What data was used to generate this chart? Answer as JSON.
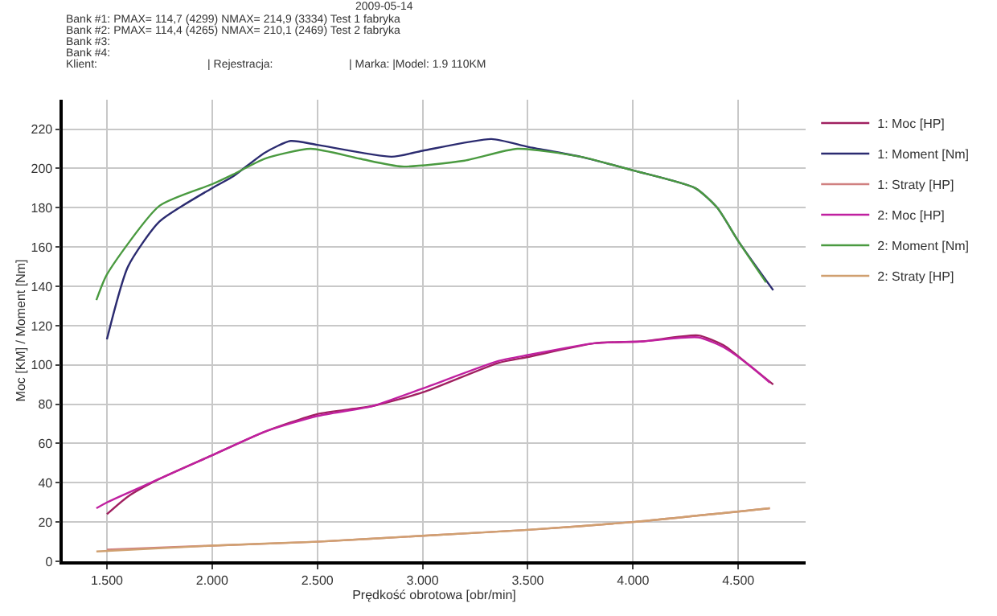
{
  "chart_data": {
    "type": "line",
    "xlabel": "Prędkość obrotowa [obr/min]",
    "ylabel": "Moc [KM] / Moment [Nm]",
    "xlim": [
      1290,
      4820
    ],
    "ylim": [
      0,
      235
    ],
    "xticks": [
      {
        "value": 1500,
        "label": "1.500"
      },
      {
        "value": 2000,
        "label": "2.000"
      },
      {
        "value": 2500,
        "label": "2.500"
      },
      {
        "value": 3000,
        "label": "3.000"
      },
      {
        "value": 3500,
        "label": "3.500"
      },
      {
        "value": 4000,
        "label": "4.000"
      },
      {
        "value": 4500,
        "label": "4.500"
      }
    ],
    "yticks": [
      0,
      20,
      40,
      60,
      80,
      100,
      120,
      140,
      160,
      180,
      200,
      220
    ],
    "grid": true,
    "legend": "right",
    "annotations": [
      "2009-05-14",
      "Bank #1: PMAX= 114,7 (4299) NMAX= 214,9 (3334) Test 1 fabryka",
      "Bank #2: PMAX= 114,4 (4265) NMAX= 210,1 (2469) Test 2 fabryka",
      "Bank #3:",
      "Bank #4:",
      "Klient:",
      "| Rejestracja:",
      "| Marka: |Model: 1.9 110KM"
    ],
    "series": [
      {
        "name": "1: Moc [HP]",
        "color": "#a02060",
        "x": [
          1500,
          1600,
          1750,
          2000,
          2250,
          2500,
          2760,
          3000,
          3360,
          3500,
          3815,
          4046,
          4310,
          4430,
          4550,
          4666
        ],
        "values": [
          24,
          33,
          42,
          54,
          66,
          75,
          79,
          86,
          101,
          104,
          111,
          112,
          115,
          110,
          100,
          90
        ]
      },
      {
        "name": "1: Moment [Nm]",
        "color": "#2b2b70",
        "x": [
          1500,
          1600,
          1750,
          2000,
          2100,
          2250,
          2372,
          2500,
          2853,
          3000,
          3327,
          3500,
          3750,
          4000,
          4295,
          4400,
          4500,
          4666
        ],
        "values": [
          113,
          150,
          173,
          190,
          196,
          208,
          214,
          212,
          206,
          209,
          215,
          211,
          206,
          199,
          190,
          180,
          163,
          138
        ]
      },
      {
        "name": "1: Straty [HP]",
        "color": "#d08080",
        "x": [
          1500,
          2000,
          2500,
          3000,
          3500,
          4000,
          4650
        ],
        "values": [
          6,
          8,
          10,
          13,
          16,
          20,
          27
        ]
      },
      {
        "name": "2: Moc [HP]",
        "color": "#c020a0",
        "x": [
          1450,
          1500,
          1750,
          2000,
          2250,
          2500,
          2760,
          3000,
          3360,
          3500,
          3815,
          4046,
          4310,
          4430,
          4550,
          4650
        ],
        "values": [
          27,
          30,
          42,
          54,
          66,
          74,
          79,
          88,
          102,
          105,
          111,
          112,
          114,
          109,
          100,
          91
        ]
      },
      {
        "name": "2: Moment [Nm]",
        "color": "#4a9a40",
        "x": [
          1450,
          1500,
          1750,
          2000,
          2100,
          2250,
          2468,
          2700,
          2901,
          3200,
          3450,
          3750,
          4000,
          4295,
          4400,
          4500,
          4632
        ],
        "values": [
          133,
          146,
          181,
          192,
          197,
          205,
          210,
          205,
          201,
          204,
          210,
          206,
          199,
          190,
          180,
          163,
          142
        ]
      },
      {
        "name": "2: Straty [HP]",
        "color": "#d0a070",
        "x": [
          1450,
          2000,
          2500,
          3000,
          3500,
          4000,
          4650
        ],
        "values": [
          5,
          8,
          10,
          13,
          16,
          20,
          27
        ]
      }
    ]
  }
}
